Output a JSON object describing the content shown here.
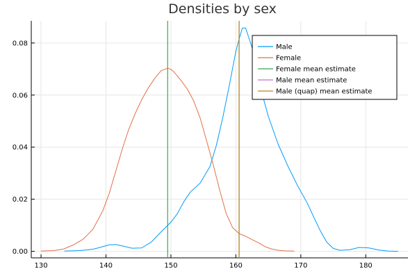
{
  "chart_data": {
    "type": "line",
    "title": "Densities by sex",
    "xlabel": "",
    "ylabel": "",
    "xlim": [
      128.5,
      186.5
    ],
    "ylim": [
      -0.0025,
      0.0885
    ],
    "xticks": [
      130,
      140,
      150,
      160,
      170,
      180
    ],
    "yticks": [
      0.0,
      0.02,
      0.04,
      0.06,
      0.08
    ],
    "ytick_labels": [
      "0.00",
      "0.02",
      "0.04",
      "0.06",
      "0.08"
    ],
    "grid": true,
    "legend_position": "top-right",
    "series": [
      {
        "name": "Male",
        "color": "#009AFA",
        "x": [
          133.6,
          136,
          138,
          139.5,
          140.5,
          141.5,
          142.5,
          144,
          145.5,
          147,
          148.5,
          150,
          151,
          152,
          153,
          154.5,
          156,
          157,
          158,
          159,
          160,
          160.5,
          161,
          161.5,
          162.5,
          163.5,
          165,
          166.5,
          168,
          169.5,
          171,
          172,
          173,
          174,
          175,
          176,
          177.5,
          179,
          180.5,
          182,
          183.5,
          185
        ],
        "values": [
          0.0001,
          0.0003,
          0.0008,
          0.0018,
          0.0025,
          0.0026,
          0.0021,
          0.0012,
          0.0013,
          0.0036,
          0.0075,
          0.0112,
          0.0145,
          0.0191,
          0.0228,
          0.0262,
          0.0325,
          0.0407,
          0.0515,
          0.0638,
          0.0768,
          0.0815,
          0.0857,
          0.0858,
          0.0782,
          0.0655,
          0.0518,
          0.0412,
          0.0328,
          0.0252,
          0.0185,
          0.0131,
          0.0079,
          0.0035,
          0.0011,
          0.0004,
          0.0006,
          0.0015,
          0.0013,
          0.0005,
          0.0001,
          0.0
        ]
      },
      {
        "name": "Female",
        "color": "#E26F46",
        "x": [
          130,
          132,
          133.5,
          135,
          136.5,
          138,
          139.5,
          140.5,
          141.5,
          142.5,
          143.5,
          144.5,
          145.5,
          146.5,
          147.5,
          148.5,
          149.5,
          150,
          150.5,
          151.5,
          152.5,
          153.5,
          154.5,
          155.5,
          156.5,
          157.5,
          158.5,
          159.5,
          160.5,
          161.5,
          162.5,
          163.5,
          164.5,
          165.5,
          166.5,
          167.5,
          169
        ],
        "values": [
          0.0001,
          0.0003,
          0.0009,
          0.0025,
          0.0047,
          0.0085,
          0.0155,
          0.0222,
          0.0307,
          0.0392,
          0.0468,
          0.0529,
          0.0582,
          0.0627,
          0.0664,
          0.0694,
          0.0703,
          0.0699,
          0.0688,
          0.0658,
          0.0624,
          0.0578,
          0.0512,
          0.0424,
          0.0334,
          0.0236,
          0.0146,
          0.0091,
          0.0068,
          0.0058,
          0.0045,
          0.0033,
          0.0018,
          0.0009,
          0.0004,
          0.0002,
          0.0001
        ]
      }
    ],
    "vlines": [
      {
        "name": "Female mean estimate",
        "color": "#3EA44E",
        "x": 149.5
      },
      {
        "name": "Male mean estimate",
        "color": "#C271D2",
        "x": 160.5
      },
      {
        "name": "Male (quap) mean estimate",
        "color": "#AC8D18",
        "x": 160.5
      }
    ]
  }
}
